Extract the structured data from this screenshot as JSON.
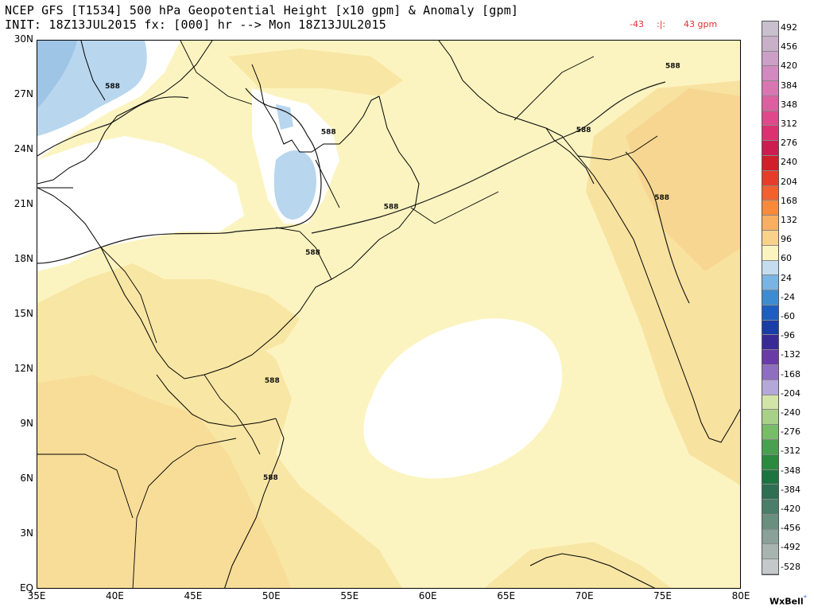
{
  "header": {
    "line1": "NCEP GFS [T1534] 500 hPa Geopotential Height [x10 gpm] & Anomaly [gpm]",
    "line2": "INIT: 18Z13JUL2015 fx: [000] hr --> Mon 18Z13JUL2015",
    "range_min": "-43",
    "range_sep": ":|:",
    "range_max": "43 gpm"
  },
  "axes": {
    "lat_labels": [
      "30N",
      "27N",
      "24N",
      "21N",
      "18N",
      "15N",
      "12N",
      "9N",
      "6N",
      "3N",
      "EQ"
    ],
    "lat_values": [
      30,
      27,
      24,
      21,
      18,
      15,
      12,
      9,
      6,
      3,
      0
    ],
    "lon_labels": [
      "35E",
      "40E",
      "45E",
      "50E",
      "55E",
      "60E",
      "65E",
      "70E",
      "75E",
      "80E"
    ],
    "lon_values": [
      35,
      40,
      45,
      50,
      55,
      60,
      65,
      70,
      75,
      80
    ],
    "lon_range": [
      35,
      80
    ],
    "lat_range": [
      0,
      30
    ]
  },
  "contour_labels": [
    {
      "text": "588",
      "lon": 39.8,
      "lat": 27.4
    },
    {
      "text": "588",
      "lon": 53.6,
      "lat": 24.9
    },
    {
      "text": "588",
      "lon": 57.6,
      "lat": 20.8
    },
    {
      "text": "588",
      "lon": 52.6,
      "lat": 18.3
    },
    {
      "text": "588",
      "lon": 50.0,
      "lat": 11.3
    },
    {
      "text": "588",
      "lon": 49.9,
      "lat": 6.0
    },
    {
      "text": "588",
      "lon": 69.9,
      "lat": 25.0
    },
    {
      "text": "588",
      "lon": 75.6,
      "lat": 28.5
    },
    {
      "text": "588",
      "lon": 74.9,
      "lat": 21.3
    }
  ],
  "colorbar": {
    "labels": [
      "492",
      "456",
      "420",
      "384",
      "348",
      "312",
      "276",
      "240",
      "204",
      "168",
      "132",
      "96",
      "60",
      "24",
      "-24",
      "-60",
      "-96",
      "-132",
      "-168",
      "-204",
      "-240",
      "-276",
      "-312",
      "-348",
      "-384",
      "-420",
      "-456",
      "-492",
      "-528"
    ],
    "colors": [
      "#c8c0cc",
      "#c8b0c8",
      "#cc9fc6",
      "#d08ac0",
      "#d876b2",
      "#dd5fa0",
      "#e0488a",
      "#dc3070",
      "#cc1c50",
      "#d01e2a",
      "#e83c2a",
      "#f4602c",
      "#f88a3a",
      "#f8b060",
      "#f8d28a",
      "#fcf4c0",
      "#c4dcee",
      "#7ab4e2",
      "#3d8cd2",
      "#1e5ec2",
      "#1a3ca6",
      "#3a2a98",
      "#6a3aa8",
      "#8e6ec0",
      "#b4a8d8",
      "#d2e4a8",
      "#a8d088",
      "#78bc6a",
      "#48a050",
      "#2a8a40",
      "#1e7440",
      "#2e6e52",
      "#4a7e6a",
      "#6a8e80",
      "#8aa098",
      "#a8b4b0",
      "#c4c8c8"
    ]
  },
  "fill_colors": {
    "yellow_light": "#fcf4c0",
    "yellow_mid": "#f8e6a4",
    "orange_light": "#f8d894",
    "blue_light": "#b8d6ee",
    "blue_mid": "#9ec4e6",
    "white": "#ffffff"
  },
  "credit": "WxBell"
}
